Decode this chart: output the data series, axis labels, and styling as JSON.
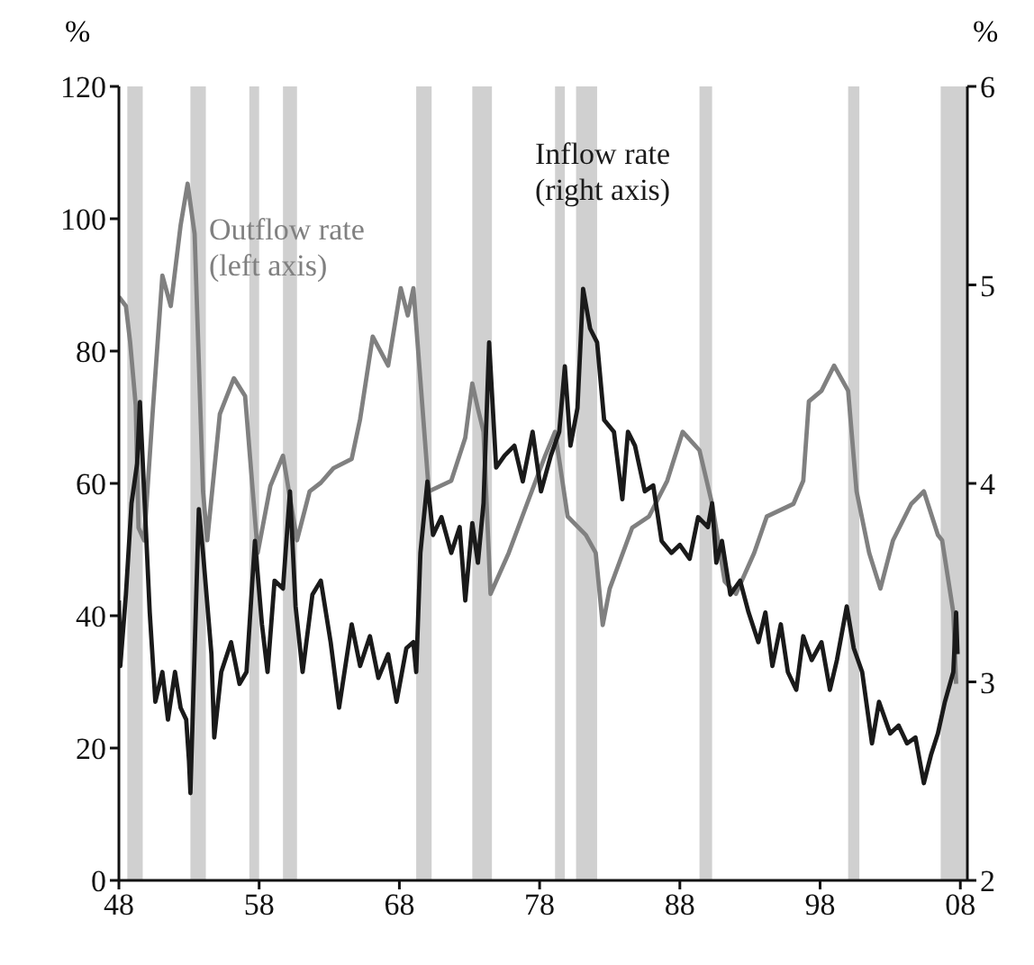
{
  "chart_data": {
    "type": "line",
    "xlabel": null,
    "ylabel": "%",
    "y2label": "%",
    "xlim": [
      1948,
      2008.5
    ],
    "xticks": [
      {
        "value": 1948,
        "label": "48"
      },
      {
        "value": 1958,
        "label": "58"
      },
      {
        "value": 1968,
        "label": "68"
      },
      {
        "value": 1978,
        "label": "78"
      },
      {
        "value": 1988,
        "label": "88"
      },
      {
        "value": 1998,
        "label": "98"
      },
      {
        "value": 2008,
        "label": "08"
      }
    ],
    "ylim": [
      0,
      120
    ],
    "yticks": [
      0,
      20,
      40,
      60,
      80,
      100,
      120
    ],
    "y2lim": [
      2,
      6
    ],
    "y2ticks": [
      2,
      3,
      4,
      5,
      6
    ],
    "marker": "none",
    "line_style": "solid",
    "bands": [
      {
        "axis": "x",
        "from": 1948.6,
        "to": 1949.7,
        "color": "#d0d0d0"
      },
      {
        "axis": "x",
        "from": 1953.1,
        "to": 1954.2,
        "color": "#d0d0d0"
      },
      {
        "axis": "x",
        "from": 1957.3,
        "to": 1958.0,
        "color": "#d0d0d0"
      },
      {
        "axis": "x",
        "from": 1959.7,
        "to": 1960.7,
        "color": "#d0d0d0"
      },
      {
        "axis": "x",
        "from": 1969.2,
        "to": 1970.3,
        "color": "#d0d0d0"
      },
      {
        "axis": "x",
        "from": 1973.2,
        "to": 1974.6,
        "color": "#d0d0d0"
      },
      {
        "axis": "x",
        "from": 1979.1,
        "to": 1979.8,
        "color": "#d0d0d0"
      },
      {
        "axis": "x",
        "from": 1980.6,
        "to": 1982.1,
        "color": "#d0d0d0"
      },
      {
        "axis": "x",
        "from": 1989.4,
        "to": 1990.3,
        "color": "#d0d0d0"
      },
      {
        "axis": "x",
        "from": 2000.0,
        "to": 2000.8,
        "color": "#d0d0d0"
      },
      {
        "axis": "x",
        "from": 2006.6,
        "to": 2008.4,
        "color": "#d0d0d0"
      }
    ],
    "series": [
      {
        "name": "Outflow rate (left axis)",
        "color": "#808080",
        "axis": "y",
        "x": [
          1948.0,
          1948.5,
          1948.8,
          1949.2,
          1949.4,
          1949.8,
          1950.4,
          1951.1,
          1951.7,
          1952.4,
          1952.9,
          1953.4,
          1954.0,
          1954.3,
          1955.2,
          1956.2,
          1957.0,
          1957.9,
          1958.8,
          1959.7,
          1960.7,
          1961.6,
          1962.4,
          1963.3,
          1964.6,
          1965.2,
          1966.1,
          1967.2,
          1968.1,
          1968.6,
          1969.0,
          1970.1,
          1971.7,
          1972.7,
          1973.2,
          1973.6,
          1974.0,
          1974.5,
          1975.8,
          1977.1,
          1978.4,
          1979.1,
          1980.0,
          1981.3,
          1982.0,
          1982.5,
          1983.0,
          1984.6,
          1985.8,
          1987.1,
          1988.2,
          1989.4,
          1990.3,
          1991.2,
          1992.0,
          1993.3,
          1994.2,
          1996.1,
          1996.8,
          1997.2,
          1998.1,
          1999.0,
          2000.0,
          2000.6,
          2001.5,
          2002.3,
          2003.2,
          2004.5,
          2005.4,
          2006.4,
          2006.7,
          2007.5,
          2007.7
        ],
        "values": [
          88.2,
          86.8,
          81.4,
          71.8,
          53.3,
          51.4,
          70.5,
          91.4,
          86.8,
          99.0,
          105.3,
          97.7,
          58.8,
          51.4,
          70.5,
          75.9,
          73.2,
          49.5,
          59.6,
          64.2,
          51.4,
          58.8,
          60.1,
          62.3,
          63.7,
          69.7,
          82.2,
          77.8,
          89.5,
          85.4,
          89.5,
          58.8,
          60.4,
          66.9,
          75.1,
          71.3,
          67.8,
          43.3,
          49.5,
          56.9,
          64.2,
          67.8,
          55.0,
          52.2,
          49.5,
          38.6,
          44.1,
          53.3,
          55.0,
          60.4,
          67.8,
          65.0,
          56.9,
          45.2,
          43.3,
          49.5,
          55.0,
          56.9,
          60.4,
          72.4,
          74.0,
          77.8,
          74.0,
          58.8,
          49.5,
          44.1,
          51.4,
          56.9,
          58.8,
          52.2,
          51.4,
          40.5,
          29.7
        ]
      },
      {
        "name": "Inflow rate (right axis)",
        "color": "#1a1a1a",
        "axis": "y2",
        "x": [
          1948.0,
          1948.1,
          1948.5,
          1948.9,
          1949.3,
          1949.5,
          1949.8,
          1950.2,
          1950.6,
          1951.1,
          1951.5,
          1952.0,
          1952.4,
          1952.8,
          1953.0,
          1953.1,
          1953.7,
          1954.0,
          1954.6,
          1954.8,
          1955.3,
          1956.0,
          1956.6,
          1957.1,
          1957.7,
          1958.2,
          1958.6,
          1959.1,
          1959.7,
          1960.2,
          1960.6,
          1961.1,
          1961.8,
          1962.4,
          1963.1,
          1963.7,
          1964.6,
          1965.2,
          1965.9,
          1966.5,
          1967.2,
          1967.8,
          1968.5,
          1969.0,
          1969.2,
          1969.5,
          1970.0,
          1970.4,
          1971.0,
          1971.7,
          1972.3,
          1972.7,
          1973.2,
          1973.6,
          1974.0,
          1974.4,
          1974.9,
          1975.5,
          1976.2,
          1976.8,
          1977.5,
          1978.1,
          1978.8,
          1979.4,
          1979.8,
          1980.2,
          1980.7,
          1981.1,
          1981.6,
          1982.1,
          1982.6,
          1983.3,
          1983.9,
          1984.3,
          1984.8,
          1985.5,
          1986.1,
          1986.7,
          1987.4,
          1988.0,
          1988.7,
          1989.3,
          1990.0,
          1990.3,
          1990.6,
          1991.0,
          1991.6,
          1992.3,
          1992.9,
          1993.6,
          1994.1,
          1994.6,
          1995.2,
          1995.7,
          1996.3,
          1996.8,
          1997.4,
          1998.1,
          1998.7,
          1999.2,
          1999.9,
          2000.4,
          2001.0,
          2001.7,
          2002.2,
          2003.0,
          2003.6,
          2004.2,
          2004.8,
          2005.4,
          2005.9,
          2006.4,
          2006.9,
          2007.5,
          2007.7,
          2007.8
        ],
        "values": [
          3.41,
          3.08,
          3.44,
          3.9,
          4.1,
          4.41,
          3.96,
          3.35,
          2.9,
          3.05,
          2.81,
          3.05,
          2.87,
          2.81,
          2.6,
          2.44,
          3.87,
          3.65,
          3.14,
          2.72,
          3.05,
          3.2,
          2.99,
          3.05,
          3.71,
          3.29,
          3.05,
          3.51,
          3.47,
          3.96,
          3.38,
          3.05,
          3.44,
          3.51,
          3.2,
          2.87,
          3.29,
          3.08,
          3.23,
          3.02,
          3.14,
          2.9,
          3.17,
          3.2,
          3.05,
          3.65,
          4.01,
          3.74,
          3.83,
          3.65,
          3.78,
          3.41,
          3.8,
          3.6,
          3.9,
          4.71,
          4.08,
          4.14,
          4.19,
          4.01,
          4.26,
          3.96,
          4.14,
          4.26,
          4.59,
          4.19,
          4.38,
          4.98,
          4.78,
          4.71,
          4.32,
          4.26,
          3.92,
          4.26,
          4.19,
          3.96,
          3.99,
          3.71,
          3.65,
          3.69,
          3.62,
          3.83,
          3.78,
          3.9,
          3.6,
          3.71,
          3.44,
          3.51,
          3.35,
          3.2,
          3.35,
          3.08,
          3.29,
          3.05,
          2.96,
          3.23,
          3.11,
          3.2,
          2.96,
          3.11,
          3.38,
          3.17,
          3.05,
          2.69,
          2.9,
          2.74,
          2.78,
          2.69,
          2.72,
          2.49,
          2.63,
          2.74,
          2.9,
          3.05,
          3.35,
          3.14
        ]
      }
    ]
  }
}
